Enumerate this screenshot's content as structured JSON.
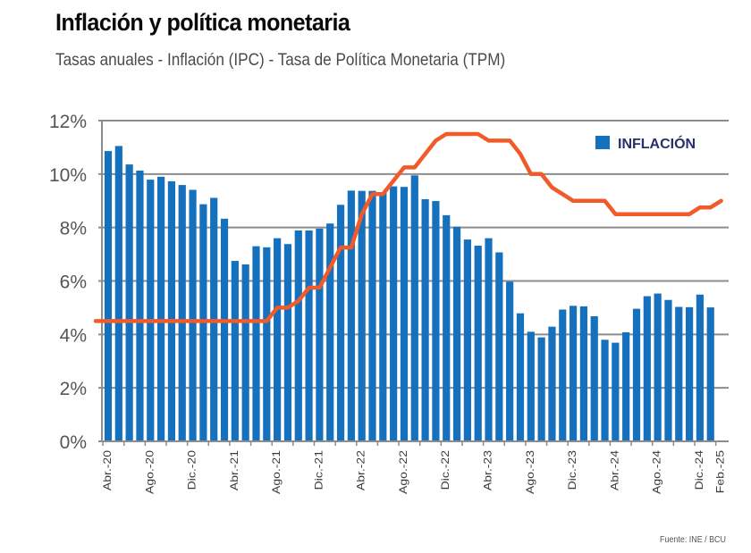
{
  "header": {
    "title": "Inflación y política monetaria",
    "subtitle": "Tasas anuales - Inflación (IPC) - Tasa de Política Monetaria (TPM)"
  },
  "footer": {
    "source": "Fuente: INE / BCU"
  },
  "colors": {
    "inflation_bar": "#1570BE",
    "tpm_line": "#F15A29",
    "gridline": "#8C8C8C"
  },
  "chart_data": {
    "type": "bar",
    "title": "Inflación y política monetaria",
    "subtitle": "Tasas anuales - Inflación (IPC) - Tasa de Política Monetaria (TPM)",
    "xlabel": "",
    "ylabel": "",
    "ylim": [
      0,
      12
    ],
    "yticks": [
      0,
      2,
      4,
      6,
      8,
      10,
      12
    ],
    "ytick_labels": [
      "0%",
      "2%",
      "4%",
      "6%",
      "8%",
      "10%",
      "12%"
    ],
    "grid": true,
    "legend": {
      "position": "top-right",
      "entries": [
        "INFLACIÓN"
      ]
    },
    "x": [
      "Abr.-20",
      "May.-20",
      "Jun.-20",
      "Jul.-20",
      "Ago.-20",
      "Sep.-20",
      "Oct.-20",
      "Nov.-20",
      "Dic.-20",
      "Ene.-21",
      "Feb.-21",
      "Mar.-21",
      "Abr.-21",
      "May.-21",
      "Jun.-21",
      "Jul.-21",
      "Ago.-21",
      "Sep.-21",
      "Oct.-21",
      "Nov.-21",
      "Dic.-21",
      "Ene.-22",
      "Feb.-22",
      "Mar.-22",
      "Abr.-22",
      "May.-22",
      "Jun.-22",
      "Jul.-22",
      "Ago.-22",
      "Sep.-22",
      "Oct.-22",
      "Nov.-22",
      "Dic.-22",
      "Ene.-23",
      "Feb.-23",
      "Mar.-23",
      "Abr.-23",
      "May.-23",
      "Jun.-23",
      "Jul.-23",
      "Ago.-23",
      "Sep.-23",
      "Oct.-23",
      "Nov.-23",
      "Dic.-23",
      "Ene.-24",
      "Feb.-24",
      "Mar.-24",
      "Abr.-24",
      "May.-24",
      "Jun.-24",
      "Jul.-24",
      "Ago.-24",
      "Sep.-24",
      "Oct.-24",
      "Nov.-24",
      "Dic.-24",
      "Ene.-25",
      "Feb.-25"
    ],
    "xtick_labels": [
      {
        "index": 0,
        "label": "Abr.-20"
      },
      {
        "index": 4,
        "label": "Ago.-20"
      },
      {
        "index": 8,
        "label": "Dic.-20"
      },
      {
        "index": 12,
        "label": "Abr.-21"
      },
      {
        "index": 16,
        "label": "Ago.-21"
      },
      {
        "index": 20,
        "label": "Dic.-21"
      },
      {
        "index": 24,
        "label": "Abr.-22"
      },
      {
        "index": 28,
        "label": "Ago.-22"
      },
      {
        "index": 32,
        "label": "Dic.-22"
      },
      {
        "index": 36,
        "label": "Abr.-23"
      },
      {
        "index": 40,
        "label": "Ago.-23"
      },
      {
        "index": 44,
        "label": "Dic.-23"
      },
      {
        "index": 48,
        "label": "Abr.-24"
      },
      {
        "index": 52,
        "label": "Ago.-24"
      },
      {
        "index": 56,
        "label": "Dic.-24"
      },
      {
        "index": 58,
        "label": "Feb.-25"
      }
    ],
    "series": [
      {
        "name": "INFLACIÓN",
        "type": "bar",
        "unit": "%",
        "values": [
          10.86,
          11.05,
          10.36,
          10.13,
          9.79,
          9.9,
          9.73,
          9.59,
          9.41,
          8.87,
          9.11,
          8.33,
          6.75,
          6.62,
          7.3,
          7.26,
          7.6,
          7.38,
          7.89,
          7.89,
          7.96,
          8.15,
          8.85,
          9.38,
          9.37,
          9.37,
          9.3,
          9.54,
          9.52,
          9.95,
          9.06,
          8.99,
          8.46,
          8.03,
          7.55,
          7.32,
          7.6,
          7.07,
          5.97,
          4.79,
          4.1,
          3.89,
          4.29,
          4.93,
          5.07,
          5.05,
          4.68,
          3.8,
          3.69,
          4.08,
          4.96,
          5.43,
          5.53,
          5.29,
          5.03,
          5.02,
          5.49,
          5.01,
          null
        ]
      },
      {
        "name": "TPM",
        "type": "line",
        "unit": "%",
        "values": [
          4.5,
          4.5,
          4.5,
          4.5,
          4.5,
          4.5,
          4.5,
          4.5,
          4.5,
          4.5,
          4.5,
          4.5,
          4.5,
          4.5,
          4.5,
          4.5,
          5.0,
          5.0,
          5.25,
          5.75,
          5.75,
          6.5,
          7.25,
          7.25,
          8.5,
          9.25,
          9.25,
          9.75,
          10.25,
          10.25,
          10.75,
          11.25,
          11.5,
          11.5,
          11.5,
          11.5,
          11.25,
          11.25,
          11.25,
          10.75,
          10.0,
          10.0,
          9.5,
          9.25,
          9.0,
          9.0,
          9.0,
          9.0,
          8.5,
          8.5,
          8.5,
          8.5,
          8.5,
          8.5,
          8.5,
          8.5,
          8.75,
          8.75,
          9.0
        ]
      }
    ]
  }
}
